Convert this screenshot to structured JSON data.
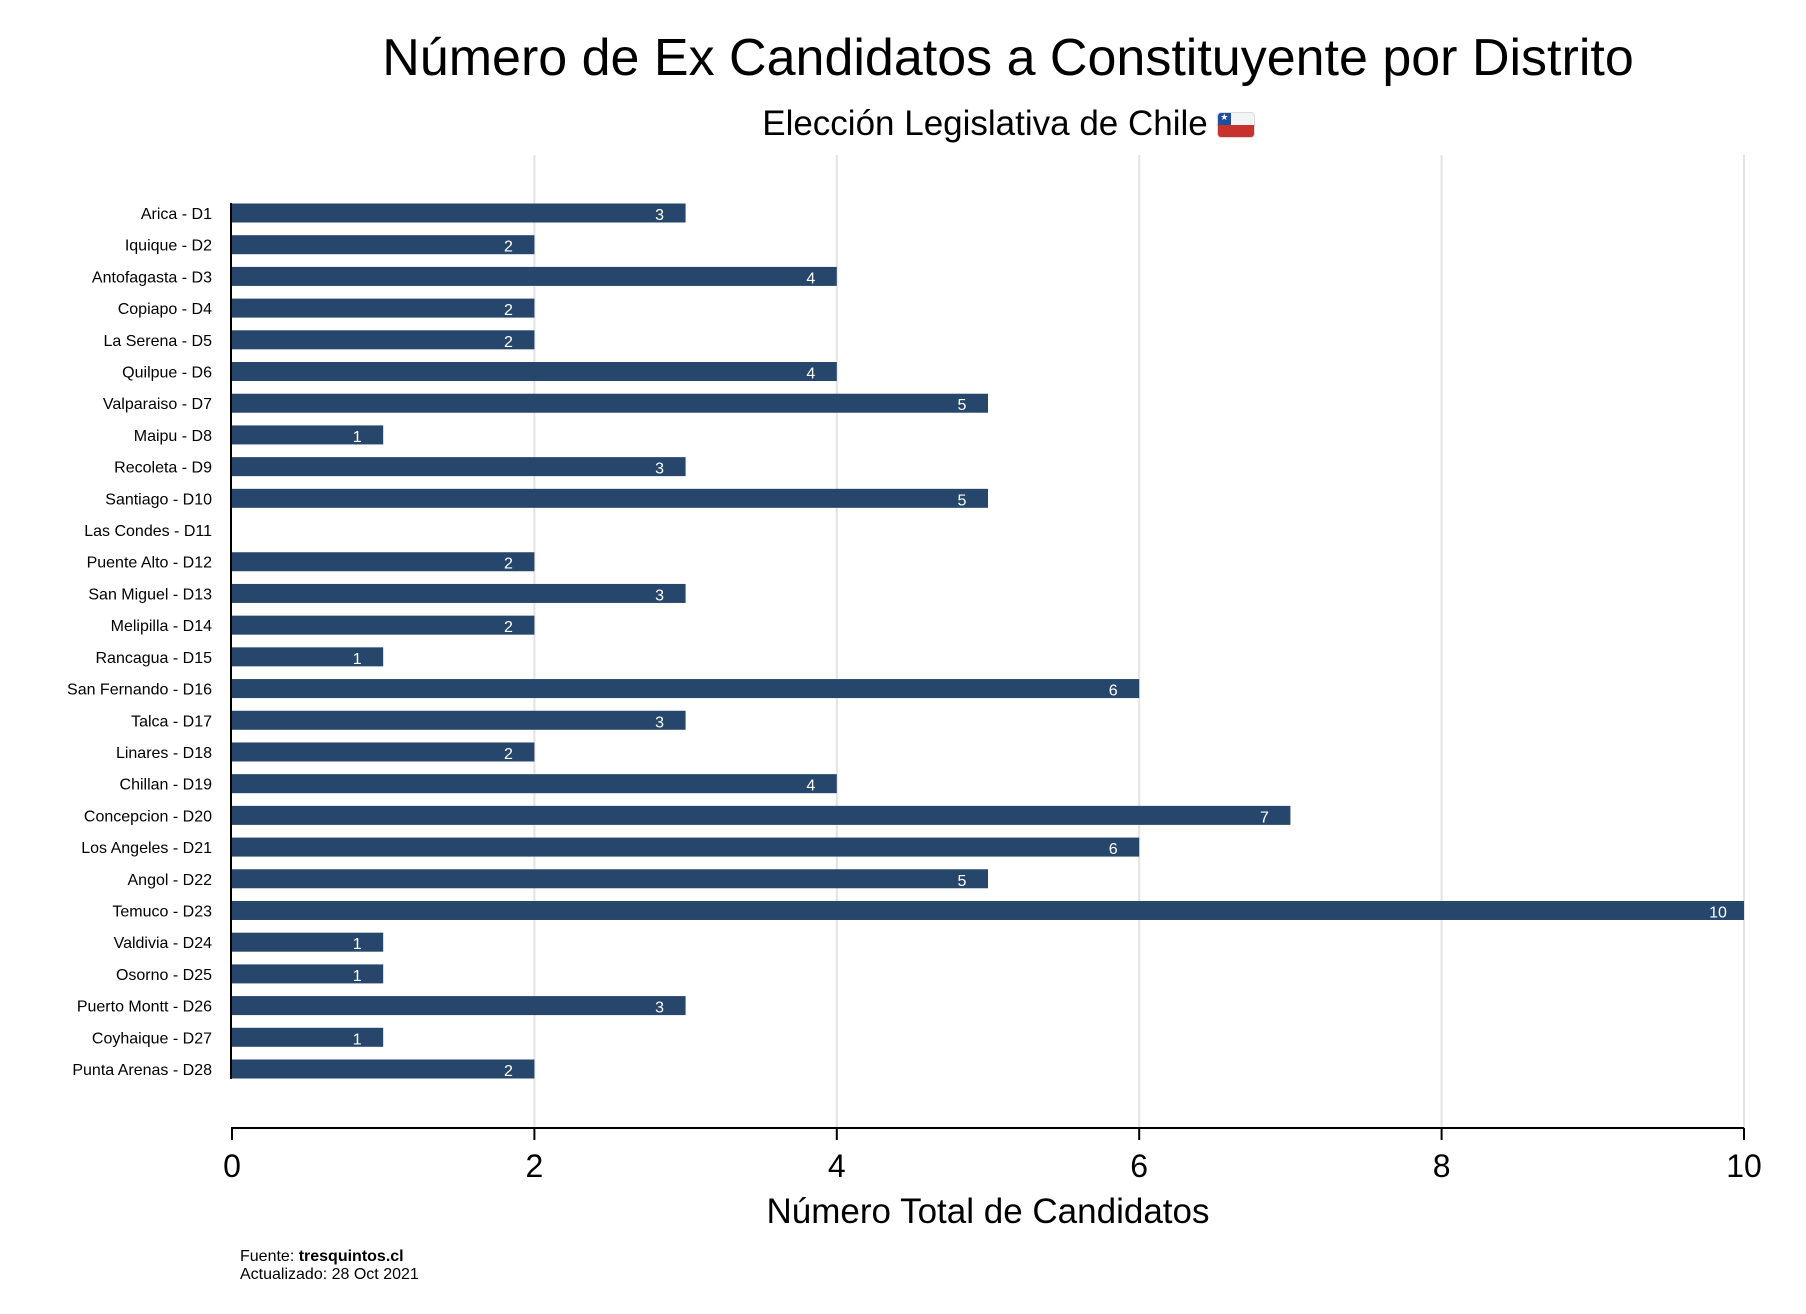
{
  "chart_data": {
    "type": "bar",
    "orientation": "horizontal",
    "title": "Número de Ex Candidatos a Constituyente por Distrito",
    "subtitle": "Elección Legislativa de Chile",
    "subtitle_icon": "chile-flag-icon",
    "xlabel": "Número Total de Candidatos",
    "ylabel": "",
    "xlim": [
      0,
      10
    ],
    "xticks": [
      "0",
      "2",
      "4",
      "6",
      "8",
      "10"
    ],
    "grid": "vertical",
    "legend": "none",
    "bar_color": "#27466b",
    "label_color": "#ffffff",
    "categories": [
      "Arica - D1",
      "Iquique - D2",
      "Antofagasta - D3",
      "Copiapo - D4",
      "La Serena - D5",
      "Quilpue - D6",
      "Valparaiso - D7",
      "Maipu - D8",
      "Recoleta - D9",
      "Santiago - D10",
      "Las Condes - D11",
      "Puente Alto - D12",
      "San Miguel - D13",
      "Melipilla - D14",
      "Rancagua - D15",
      "San Fernando - D16",
      "Talca - D17",
      "Linares - D18",
      "Chillan - D19",
      "Concepcion - D20",
      "Los Angeles - D21",
      "Angol - D22",
      "Temuco - D23",
      "Valdivia - D24",
      "Osorno - D25",
      "Puerto Montt - D26",
      "Coyhaique - D27",
      "Punta Arenas - D28"
    ],
    "values": [
      3,
      2,
      4,
      2,
      2,
      4,
      5,
      1,
      3,
      5,
      0,
      2,
      3,
      2,
      1,
      6,
      3,
      2,
      4,
      7,
      6,
      5,
      10,
      1,
      1,
      3,
      1,
      2
    ],
    "data_labels": [
      "3",
      "2",
      "4",
      "2",
      "2",
      "4",
      "5",
      "1",
      "3",
      "5",
      "",
      "2",
      "3",
      "2",
      "1",
      "6",
      "3",
      "2",
      "4",
      "7",
      "6",
      "5",
      "10",
      "1",
      "1",
      "3",
      "1",
      "2"
    ]
  },
  "footer": {
    "source_prefix": "Fuente: ",
    "source_name": "tresquintos.cl",
    "updated": "Actualizado: 28 Oct 2021"
  }
}
